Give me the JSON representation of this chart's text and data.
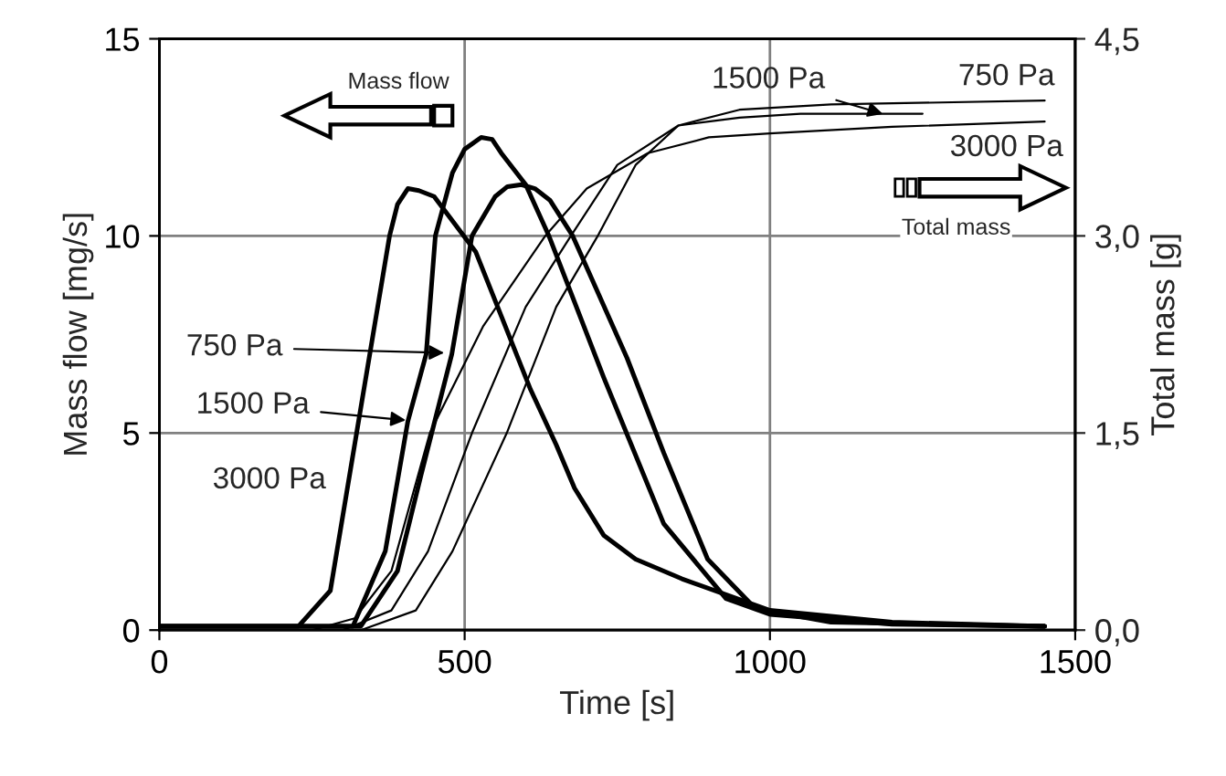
{
  "chart_data": {
    "type": "line",
    "xlabel": "Time [s]",
    "ylabel": "Mass flow [mg/s]",
    "y2label": "Total mass [g]",
    "xlim": [
      0,
      1500
    ],
    "xticks": [
      0,
      500,
      1000,
      1500
    ],
    "ylim": [
      0,
      15
    ],
    "yticks": [
      0,
      5,
      10,
      15
    ],
    "y2lim": [
      0,
      4.5
    ],
    "y2ticks": [
      {
        "value": 0,
        "label": "0,0"
      },
      {
        "value": 1.5,
        "label": "1,5"
      },
      {
        "value": 3.0,
        "label": "3,0"
      },
      {
        "value": 4.5,
        "label": "4,5"
      }
    ],
    "grid": true,
    "line_style": "solid",
    "marker": "none",
    "series": [
      {
        "color": "#000000",
        "x": [
          0,
          228,
          280,
          323,
          350,
          377,
          390,
          407,
          425,
          450,
          518,
          608,
          650,
          680,
          728,
          780,
          856,
          1000,
          1200,
          1450
        ],
        "values": [
          0.1,
          0.1,
          1,
          5,
          7.5,
          10,
          10.8,
          11.2,
          11.15,
          11.0,
          9.6,
          6.1,
          4.7,
          3.6,
          2.4,
          1.8,
          1.3,
          0.5,
          0.2,
          0.1
        ]
      },
      {
        "color": "#000000",
        "x": [
          0,
          317,
          370,
          407,
          437,
          452,
          480,
          500,
          527,
          545,
          560,
          600,
          638,
          728,
          826,
          928,
          1000,
          1200,
          1450
        ],
        "values": [
          0.1,
          0.1,
          2,
          5.3,
          7,
          10,
          11.6,
          12.2,
          12.5,
          12.45,
          12.1,
          11.3,
          10,
          6.4,
          2.7,
          0.8,
          0.4,
          0.15,
          0.1
        ]
      },
      {
        "color": "#000000",
        "x": [
          0,
          330,
          390,
          428,
          479,
          512,
          550,
          570,
          593,
          615,
          640,
          677,
          766,
          826,
          898,
          976,
          1100,
          1450
        ],
        "values": [
          0.1,
          0.1,
          1.5,
          3.9,
          7,
          10,
          11,
          11.25,
          11.3,
          11.2,
          10.9,
          10,
          6.9,
          4.5,
          1.8,
          0.55,
          0.2,
          0.1
        ]
      },
      {
        "color": "#000000",
        "axis": "y2",
        "x": [
          250,
          320,
          380,
          443,
          530,
          632,
          700,
          800,
          900,
          1000,
          1200,
          1450
        ],
        "values": [
          0,
          0.09,
          0.45,
          1.5,
          2.31,
          3.0,
          3.36,
          3.63,
          3.75,
          3.78,
          3.83,
          3.87
        ]
      },
      {
        "color": "#000000",
        "axis": "y2",
        "x": [
          300,
          380,
          440,
          512,
          600,
          674,
          750,
          850,
          950,
          1050,
          1250
        ],
        "values": [
          0,
          0.15,
          0.6,
          1.5,
          2.46,
          3.0,
          3.54,
          3.84,
          3.9,
          3.93,
          3.93
        ]
      },
      {
        "color": "#000000",
        "axis": "y2",
        "x": [
          330,
          420,
          480,
          569,
          650,
          718,
          780,
          850,
          950,
          1100,
          1450
        ],
        "values": [
          0,
          0.15,
          0.6,
          1.5,
          2.46,
          3.0,
          3.54,
          3.84,
          3.96,
          4.0,
          4.03
        ]
      }
    ],
    "annotations": [
      "750 Pa",
      "1500 Pa",
      "3000 Pa",
      "1500 Pa",
      "750 Pa",
      "3000 Pa",
      "Mass flow",
      "Total mass"
    ]
  }
}
